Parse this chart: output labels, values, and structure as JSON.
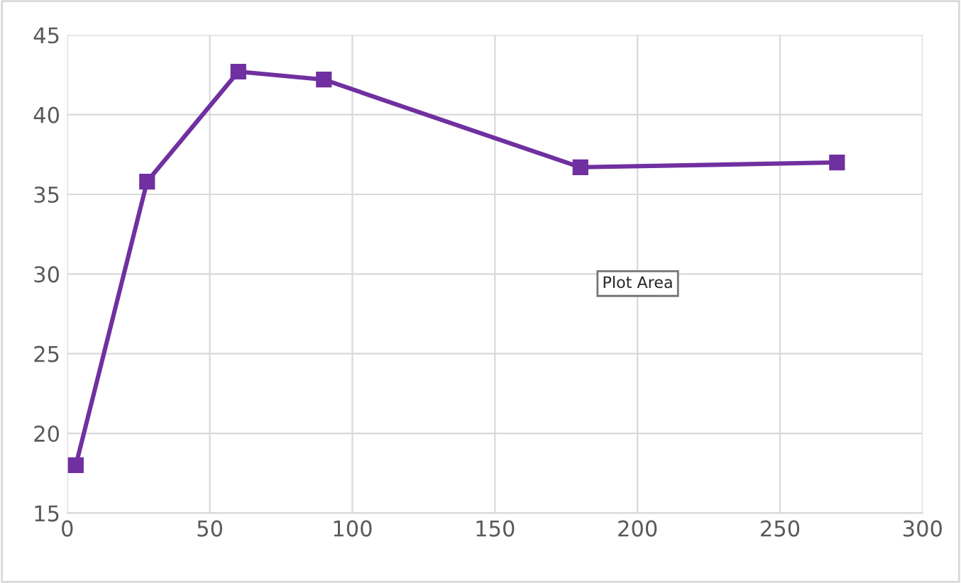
{
  "chart_data": {
    "type": "line",
    "x": [
      3,
      28,
      60,
      90,
      180,
      270
    ],
    "series": [
      {
        "color": "#7030a0",
        "values": [
          18,
          35.8,
          42.7,
          42.2,
          36.7,
          37.0
        ]
      }
    ],
    "xlim": [
      0,
      300
    ],
    "xticks": [
      0,
      50,
      100,
      150,
      200,
      250,
      300
    ],
    "ylim": [
      15,
      45
    ],
    "yticks": [
      15,
      20,
      25,
      30,
      35,
      40,
      45
    ],
    "grid": true,
    "marker": "square",
    "line_style": "solid",
    "legend": false,
    "annotations": [
      "Plot Area"
    ]
  }
}
